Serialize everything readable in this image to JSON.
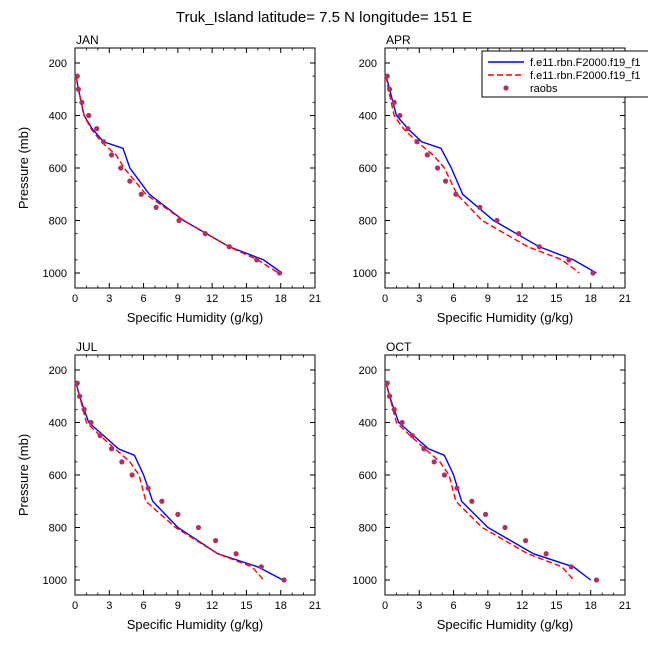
{
  "title": "Truk_Island  latitude= 7.5 N longitude= 151 E",
  "legend": {
    "entries": [
      {
        "label": "f.e11.rbn.F2000.f19_f1",
        "style": "solid",
        "color": "#0000ff"
      },
      {
        "label": "f.e11.rbn.F2000.f19_f1",
        "style": "dashed",
        "color": "#ff0000"
      },
      {
        "label": "raobs",
        "style": "marker",
        "color": "#b03060"
      }
    ]
  },
  "chart_data": [
    {
      "type": "line",
      "panel_label": "JAN",
      "xlabel": "Specific Humidity (g/kg)",
      "ylabel": "Pressure (mb)",
      "xlim": [
        0,
        21
      ],
      "ylim": [
        1000,
        200
      ],
      "y_inverted": true,
      "xticks": [
        0,
        3,
        6,
        9,
        12,
        15,
        18,
        21
      ],
      "yticks": [
        200,
        400,
        600,
        800,
        1000
      ],
      "series": [
        {
          "name": "f.e11.rbn.F2000.f19_f1",
          "style": "solid",
          "x": [
            0.1,
            0.3,
            0.8,
            1.5,
            2.5,
            4.2,
            4.8,
            6.5,
            9.5,
            13.5,
            16.5,
            18.1
          ],
          "y": [
            250,
            300,
            400,
            450,
            500,
            525,
            600,
            700,
            800,
            900,
            950,
            1000
          ]
        },
        {
          "name": "f.e11.rbn.F2000.f19_f1",
          "style": "dashed",
          "x": [
            0.1,
            0.3,
            0.8,
            1.4,
            2.3,
            3.6,
            4.3,
            6.2,
            9.5,
            13.5,
            16.0,
            17.8
          ],
          "y": [
            250,
            300,
            400,
            450,
            500,
            550,
            600,
            700,
            800,
            900,
            950,
            1000
          ]
        },
        {
          "name": "raobs",
          "style": "marker",
          "x": [
            0.2,
            0.3,
            0.6,
            1.2,
            1.9,
            2.5,
            3.2,
            4.0,
            4.8,
            5.8,
            7.1,
            9.1,
            11.4,
            13.5,
            15.9,
            17.9
          ],
          "y": [
            250,
            300,
            350,
            400,
            450,
            500,
            550,
            600,
            650,
            700,
            750,
            800,
            850,
            900,
            950,
            1000
          ]
        }
      ]
    },
    {
      "type": "line",
      "panel_label": "APR",
      "xlabel": "Specific Humidity (g/kg)",
      "ylabel": "",
      "xlim": [
        0,
        21
      ],
      "ylim": [
        1000,
        200
      ],
      "y_inverted": true,
      "xticks": [
        0,
        3,
        6,
        9,
        12,
        15,
        18,
        21
      ],
      "yticks": [
        200,
        400,
        600,
        800,
        1000
      ],
      "series": [
        {
          "name": "f.e11.rbn.F2000.f19_f1",
          "style": "solid",
          "x": [
            0.1,
            0.4,
            1.0,
            2.0,
            3.2,
            4.9,
            5.8,
            6.8,
            9.5,
            13.5,
            16.5,
            18.5
          ],
          "y": [
            250,
            300,
            400,
            450,
            500,
            525,
            600,
            700,
            800,
            900,
            950,
            1000
          ]
        },
        {
          "name": "f.e11.rbn.F2000.f19_f1",
          "style": "dashed",
          "x": [
            0.1,
            0.3,
            0.8,
            1.6,
            2.8,
            4.2,
            5.2,
            6.3,
            8.5,
            12.5,
            15.5,
            17.0
          ],
          "y": [
            250,
            300,
            400,
            450,
            500,
            550,
            600,
            700,
            800,
            900,
            950,
            1000
          ]
        },
        {
          "name": "raobs",
          "style": "marker",
          "x": [
            0.2,
            0.4,
            0.8,
            1.3,
            2.0,
            2.8,
            3.7,
            4.6,
            5.3,
            6.2,
            8.3,
            9.8,
            11.7,
            13.5,
            16.1,
            18.2
          ],
          "y": [
            250,
            300,
            350,
            400,
            450,
            500,
            550,
            600,
            650,
            700,
            750,
            800,
            850,
            900,
            950,
            1000
          ]
        }
      ]
    },
    {
      "type": "line",
      "panel_label": "JUL",
      "xlabel": "Specific Humidity (g/kg)",
      "ylabel": "Pressure (mb)",
      "xlim": [
        0,
        21
      ],
      "ylim": [
        1000,
        200
      ],
      "y_inverted": true,
      "xticks": [
        0,
        3,
        6,
        9,
        12,
        15,
        18,
        21
      ],
      "yticks": [
        200,
        400,
        600,
        800,
        1000
      ],
      "series": [
        {
          "name": "f.e11.rbn.F2000.f19_f1",
          "style": "solid",
          "x": [
            0.1,
            0.4,
            1.2,
            2.5,
            3.8,
            5.2,
            6.0,
            6.8,
            9.0,
            12.5,
            16.0,
            18.2
          ],
          "y": [
            250,
            300,
            400,
            450,
            500,
            525,
            600,
            700,
            800,
            900,
            950,
            1000
          ]
        },
        {
          "name": "f.e11.rbn.F2000.f19_f1",
          "style": "dashed",
          "x": [
            0.1,
            0.4,
            1.0,
            2.2,
            3.5,
            4.8,
            5.6,
            6.2,
            8.8,
            12.5,
            15.5,
            16.5
          ],
          "y": [
            250,
            300,
            400,
            450,
            500,
            550,
            600,
            700,
            800,
            900,
            950,
            1000
          ]
        },
        {
          "name": "raobs",
          "style": "marker",
          "x": [
            0.2,
            0.4,
            0.8,
            1.4,
            2.2,
            3.2,
            4.1,
            5.0,
            6.4,
            7.6,
            9.0,
            10.8,
            12.3,
            14.1,
            16.3,
            18.3
          ],
          "y": [
            250,
            300,
            350,
            400,
            450,
            500,
            550,
            600,
            650,
            700,
            750,
            800,
            850,
            900,
            950,
            1000
          ]
        }
      ]
    },
    {
      "type": "line",
      "panel_label": "OCT",
      "xlabel": "Specific Humidity (g/kg)",
      "ylabel": "",
      "xlim": [
        0,
        21
      ],
      "ylim": [
        1000,
        200
      ],
      "y_inverted": true,
      "xticks": [
        0,
        3,
        6,
        9,
        12,
        15,
        18,
        21
      ],
      "yticks": [
        200,
        400,
        600,
        800,
        1000
      ],
      "series": [
        {
          "name": "f.e11.rbn.F2000.f19_f1",
          "style": "solid",
          "x": [
            0.1,
            0.4,
            1.2,
            2.5,
            3.8,
            5.2,
            6.0,
            6.7,
            9.0,
            13.0,
            16.5,
            18.0
          ],
          "y": [
            250,
            300,
            400,
            450,
            500,
            525,
            600,
            700,
            800,
            900,
            950,
            1000
          ]
        },
        {
          "name": "f.e11.rbn.F2000.f19_f1",
          "style": "dashed",
          "x": [
            0.1,
            0.4,
            1.0,
            2.2,
            3.5,
            4.8,
            5.6,
            6.2,
            8.5,
            12.5,
            15.5,
            16.5
          ],
          "y": [
            250,
            300,
            400,
            450,
            500,
            550,
            600,
            700,
            800,
            900,
            950,
            1000
          ]
        },
        {
          "name": "raobs",
          "style": "marker",
          "x": [
            0.2,
            0.4,
            0.8,
            1.5,
            2.4,
            3.4,
            4.3,
            5.2,
            6.3,
            7.6,
            8.8,
            10.5,
            12.3,
            14.1,
            16.3,
            18.5
          ],
          "y": [
            250,
            300,
            350,
            400,
            450,
            500,
            550,
            600,
            650,
            700,
            750,
            800,
            850,
            900,
            950,
            1000
          ]
        }
      ]
    }
  ]
}
